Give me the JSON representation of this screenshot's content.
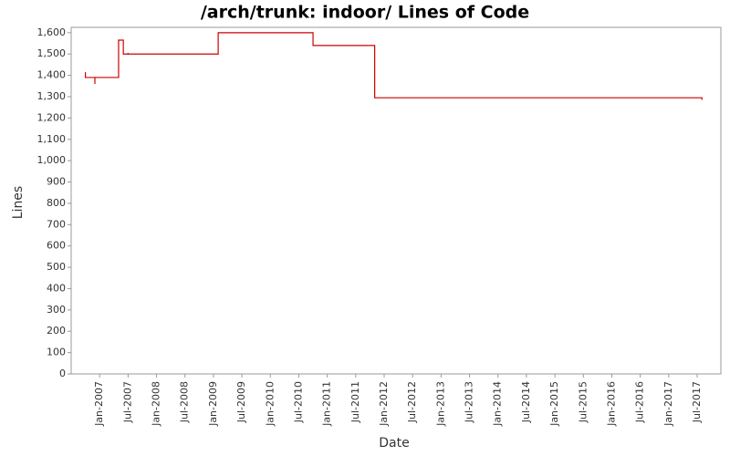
{
  "chart_data": {
    "type": "line",
    "step": "post",
    "title": "/arch/trunk: indoor/ Lines of Code",
    "x_label": "Date",
    "y_label": "Lines",
    "series": [
      {
        "name": "Lines",
        "color": "#cc0000",
        "x": [
          "2006-10",
          "2006-10",
          "2006-12",
          "2006-12",
          "2007-05",
          "2007-06",
          "2007-07",
          "2007-07",
          "2009-02",
          "2010-10",
          "2011-11",
          "2017-08",
          "2017-08"
        ],
        "values": [
          1415,
          1390,
          1360,
          1390,
          1565,
          1500,
          1505,
          1500,
          1600,
          1540,
          1295,
          1295,
          1285
        ]
      }
    ],
    "xlim": [
      "2006-07",
      "2017-12"
    ],
    "xticks": [
      {
        "value": "2007-01",
        "label": "Jan-2007"
      },
      {
        "value": "2007-07",
        "label": "Jul-2007"
      },
      {
        "value": "2008-01",
        "label": "Jan-2008"
      },
      {
        "value": "2008-07",
        "label": "Jul-2008"
      },
      {
        "value": "2009-01",
        "label": "Jan-2009"
      },
      {
        "value": "2009-07",
        "label": "Jul-2009"
      },
      {
        "value": "2010-01",
        "label": "Jan-2010"
      },
      {
        "value": "2010-07",
        "label": "Jul-2010"
      },
      {
        "value": "2011-01",
        "label": "Jan-2011"
      },
      {
        "value": "2011-07",
        "label": "Jul-2011"
      },
      {
        "value": "2012-01",
        "label": "Jan-2012"
      },
      {
        "value": "2012-07",
        "label": "Jul-2012"
      },
      {
        "value": "2013-01",
        "label": "Jan-2013"
      },
      {
        "value": "2013-07",
        "label": "Jul-2013"
      },
      {
        "value": "2014-01",
        "label": "Jan-2014"
      },
      {
        "value": "2014-07",
        "label": "Jul-2014"
      },
      {
        "value": "2015-01",
        "label": "Jan-2015"
      },
      {
        "value": "2015-07",
        "label": "Jul-2015"
      },
      {
        "value": "2016-01",
        "label": "Jan-2016"
      },
      {
        "value": "2016-07",
        "label": "Jul-2016"
      },
      {
        "value": "2017-01",
        "label": "Jan-2017"
      },
      {
        "value": "2017-07",
        "label": "Jul-2017"
      }
    ],
    "ylim": [
      0,
      1625
    ],
    "yticks": [
      0,
      100,
      200,
      300,
      400,
      500,
      600,
      700,
      800,
      900,
      {
        "value": 1000,
        "label": "1,000"
      },
      {
        "value": 1100,
        "label": "1,100"
      },
      {
        "value": 1200,
        "label": "1,200"
      },
      {
        "value": 1300,
        "label": "1,300"
      },
      {
        "value": 1400,
        "label": "1,400"
      },
      {
        "value": 1500,
        "label": "1,500"
      },
      {
        "value": 1600,
        "label": "1,600"
      }
    ],
    "grid": false
  }
}
